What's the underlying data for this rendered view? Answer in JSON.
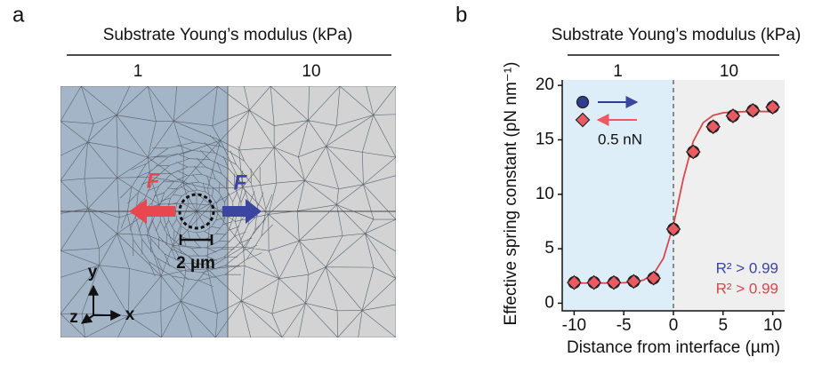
{
  "panel_a": {
    "label": "a",
    "header": "Substrate Young’s modulus (kPa)",
    "left_value": "1",
    "right_value": "10",
    "force_left": "F",
    "force_right": "F",
    "scale_bar": "2 µm",
    "axis_x": "x",
    "axis_y": "y",
    "axis_z": "z"
  },
  "chart_data": {
    "type": "scatter",
    "panel_label": "b",
    "header": "Substrate Young’s modulus (kPa)",
    "header_left": "1",
    "header_right": "10",
    "xlabel": "Distance from interface (µm)",
    "ylabel": "Effective spring constant (pN nm⁻¹)",
    "x": [
      -10,
      -8,
      -6,
      -4,
      -2,
      0,
      2,
      4,
      6,
      8,
      10
    ],
    "series": [
      {
        "color": "#2f3d8e",
        "marker": "circle",
        "values": [
          1.9,
          1.9,
          1.9,
          2.0,
          2.3,
          6.8,
          13.9,
          16.2,
          17.2,
          17.7,
          18.0
        ]
      },
      {
        "color": "#ea5a61",
        "marker": "diamond",
        "values": [
          1.9,
          1.9,
          1.9,
          2.0,
          2.3,
          6.8,
          13.9,
          16.2,
          17.2,
          17.7,
          18.0
        ]
      }
    ],
    "fit": {
      "color": "#d9474f",
      "x": [
        -10,
        -9,
        -8,
        -7,
        -6,
        -5,
        -4,
        -3,
        -2,
        -1,
        0,
        1,
        2,
        3,
        4,
        5,
        6,
        7,
        8,
        9,
        10
      ],
      "values": [
        1.85,
        1.85,
        1.85,
        1.85,
        1.86,
        1.88,
        1.94,
        2.13,
        2.68,
        4.13,
        7.19,
        11.45,
        14.87,
        16.58,
        17.25,
        17.48,
        17.56,
        17.58,
        17.6,
        17.6,
        17.6
      ]
    },
    "legend_force": "0.5 nN",
    "annotations": [
      {
        "text": "R² > 0.99",
        "color": "#3a46a0"
      },
      {
        "text": "R² > 0.99",
        "color": "#e0434b"
      }
    ],
    "interface": 0,
    "left_color": "#ddeef9",
    "right_color": "#efefef",
    "xlim": [
      -11.2,
      11.2
    ],
    "ylim": [
      -0.7,
      20.5
    ],
    "xticks": [
      -10,
      -5,
      0,
      5,
      10
    ],
    "yticks": [
      0,
      5,
      10,
      15,
      20
    ]
  }
}
